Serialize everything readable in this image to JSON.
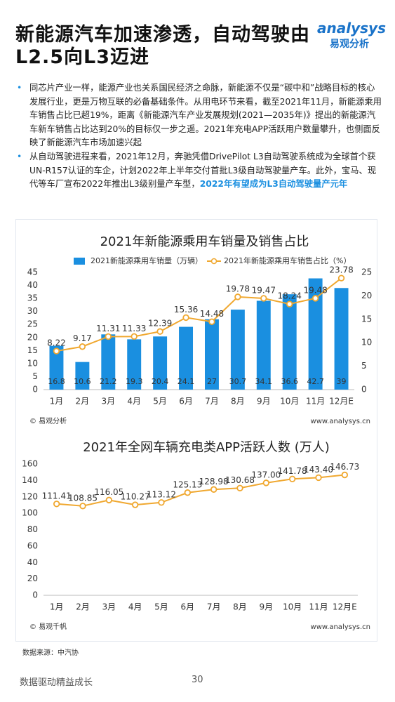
{
  "header": {
    "title": "新能源汽车加速渗透，自动驾驶由L2.5向L3迈进",
    "logo": "analysys",
    "logo_sub": "易观分析"
  },
  "bullets": [
    {
      "text": "同芯片产业一样，能源产业也关系国民经济之命脉，新能源不仅是“碳中和”战略目标的核心发展行业，更是万物互联的必备基础条件。从用电环节来看，截至2021年11月，新能源乘用车销售占比已超19%，距离《新能源汽车产业发展规划(2021—2035年)》提出的新能源汽车新车销售占比达到20%的目标仅一步之遥。2021年充电APP活跃用户数量攀升，也侧面反映了新能源汽车市场加速兴起"
    },
    {
      "text": "从自动驾驶进程来看，2021年12月，奔驰凭借DrivePilot  L3自动驾驶系统成为全球首个获UN-R157认证的车企，计划2022年上半年交付首批L3级自动驾驶量产车。此外，宝马、现代等车厂宣布2022年推出L3级别量产车型，",
      "highlight": "2022年有望成为L3自动驾驶量产元年"
    }
  ],
  "chart_data": [
    {
      "type": "bar",
      "title": "2021年新能源乘用车销量及销售占比",
      "categories": [
        "1月",
        "2月",
        "3月",
        "4月",
        "5月",
        "6月",
        "7月",
        "8月",
        "9月",
        "10月",
        "11月",
        "12月E"
      ],
      "series": [
        {
          "name": "2021新能源乘用车销量（万辆）",
          "color": "#1a8fe0",
          "values": [
            16.8,
            10.6,
            21.2,
            19.3,
            20.4,
            24.1,
            27,
            30.7,
            34.1,
            36.6,
            42.7,
            39
          ]
        },
        {
          "name": "2021年新能源乘用车销售占比（%）",
          "type": "line",
          "axis": "y2",
          "color": "#f0a830",
          "values": [
            8.22,
            9.17,
            11.31,
            11.33,
            12.39,
            15.36,
            14.48,
            19.78,
            19.47,
            18.24,
            19.48,
            23.78
          ]
        }
      ],
      "ylim": [
        0,
        45
      ],
      "yticks": [
        0,
        5,
        10,
        15,
        20,
        25,
        30,
        35,
        40,
        45
      ],
      "y2lim": [
        0,
        25
      ],
      "y2ticks": [
        0,
        5,
        10,
        15,
        20,
        25
      ],
      "source": "© 易观分析",
      "url": "www.analysys.cn"
    },
    {
      "type": "line",
      "title": "2021年全网车辆充电类APP活跃人数 (万人)",
      "categories": [
        "1月",
        "2月",
        "3月",
        "4月",
        "5月",
        "6月",
        "7月",
        "8月",
        "9月",
        "10月",
        "11月",
        "12月E"
      ],
      "color": "#f0a830",
      "values": [
        111.41,
        108.85,
        116.05,
        110.27,
        113.12,
        125.13,
        128.98,
        130.68,
        137,
        141.78,
        143.4,
        146.73
      ],
      "value_labels": [
        "111.41",
        "108.85",
        "116.05",
        "110.27",
        "113.12",
        "125.13",
        "128.98",
        "130.68",
        "137.00",
        "141.78",
        "143.40",
        "146.73"
      ],
      "ylim": [
        0,
        160
      ],
      "yticks": [
        0,
        20,
        40,
        60,
        80,
        100,
        120,
        140,
        160
      ],
      "source": "© 易观千帆",
      "url": "www.analysys.cn"
    }
  ],
  "source_note": "数据来源：中汽协",
  "footer": {
    "slogan": "数据驱动精益成长",
    "page": "30"
  }
}
